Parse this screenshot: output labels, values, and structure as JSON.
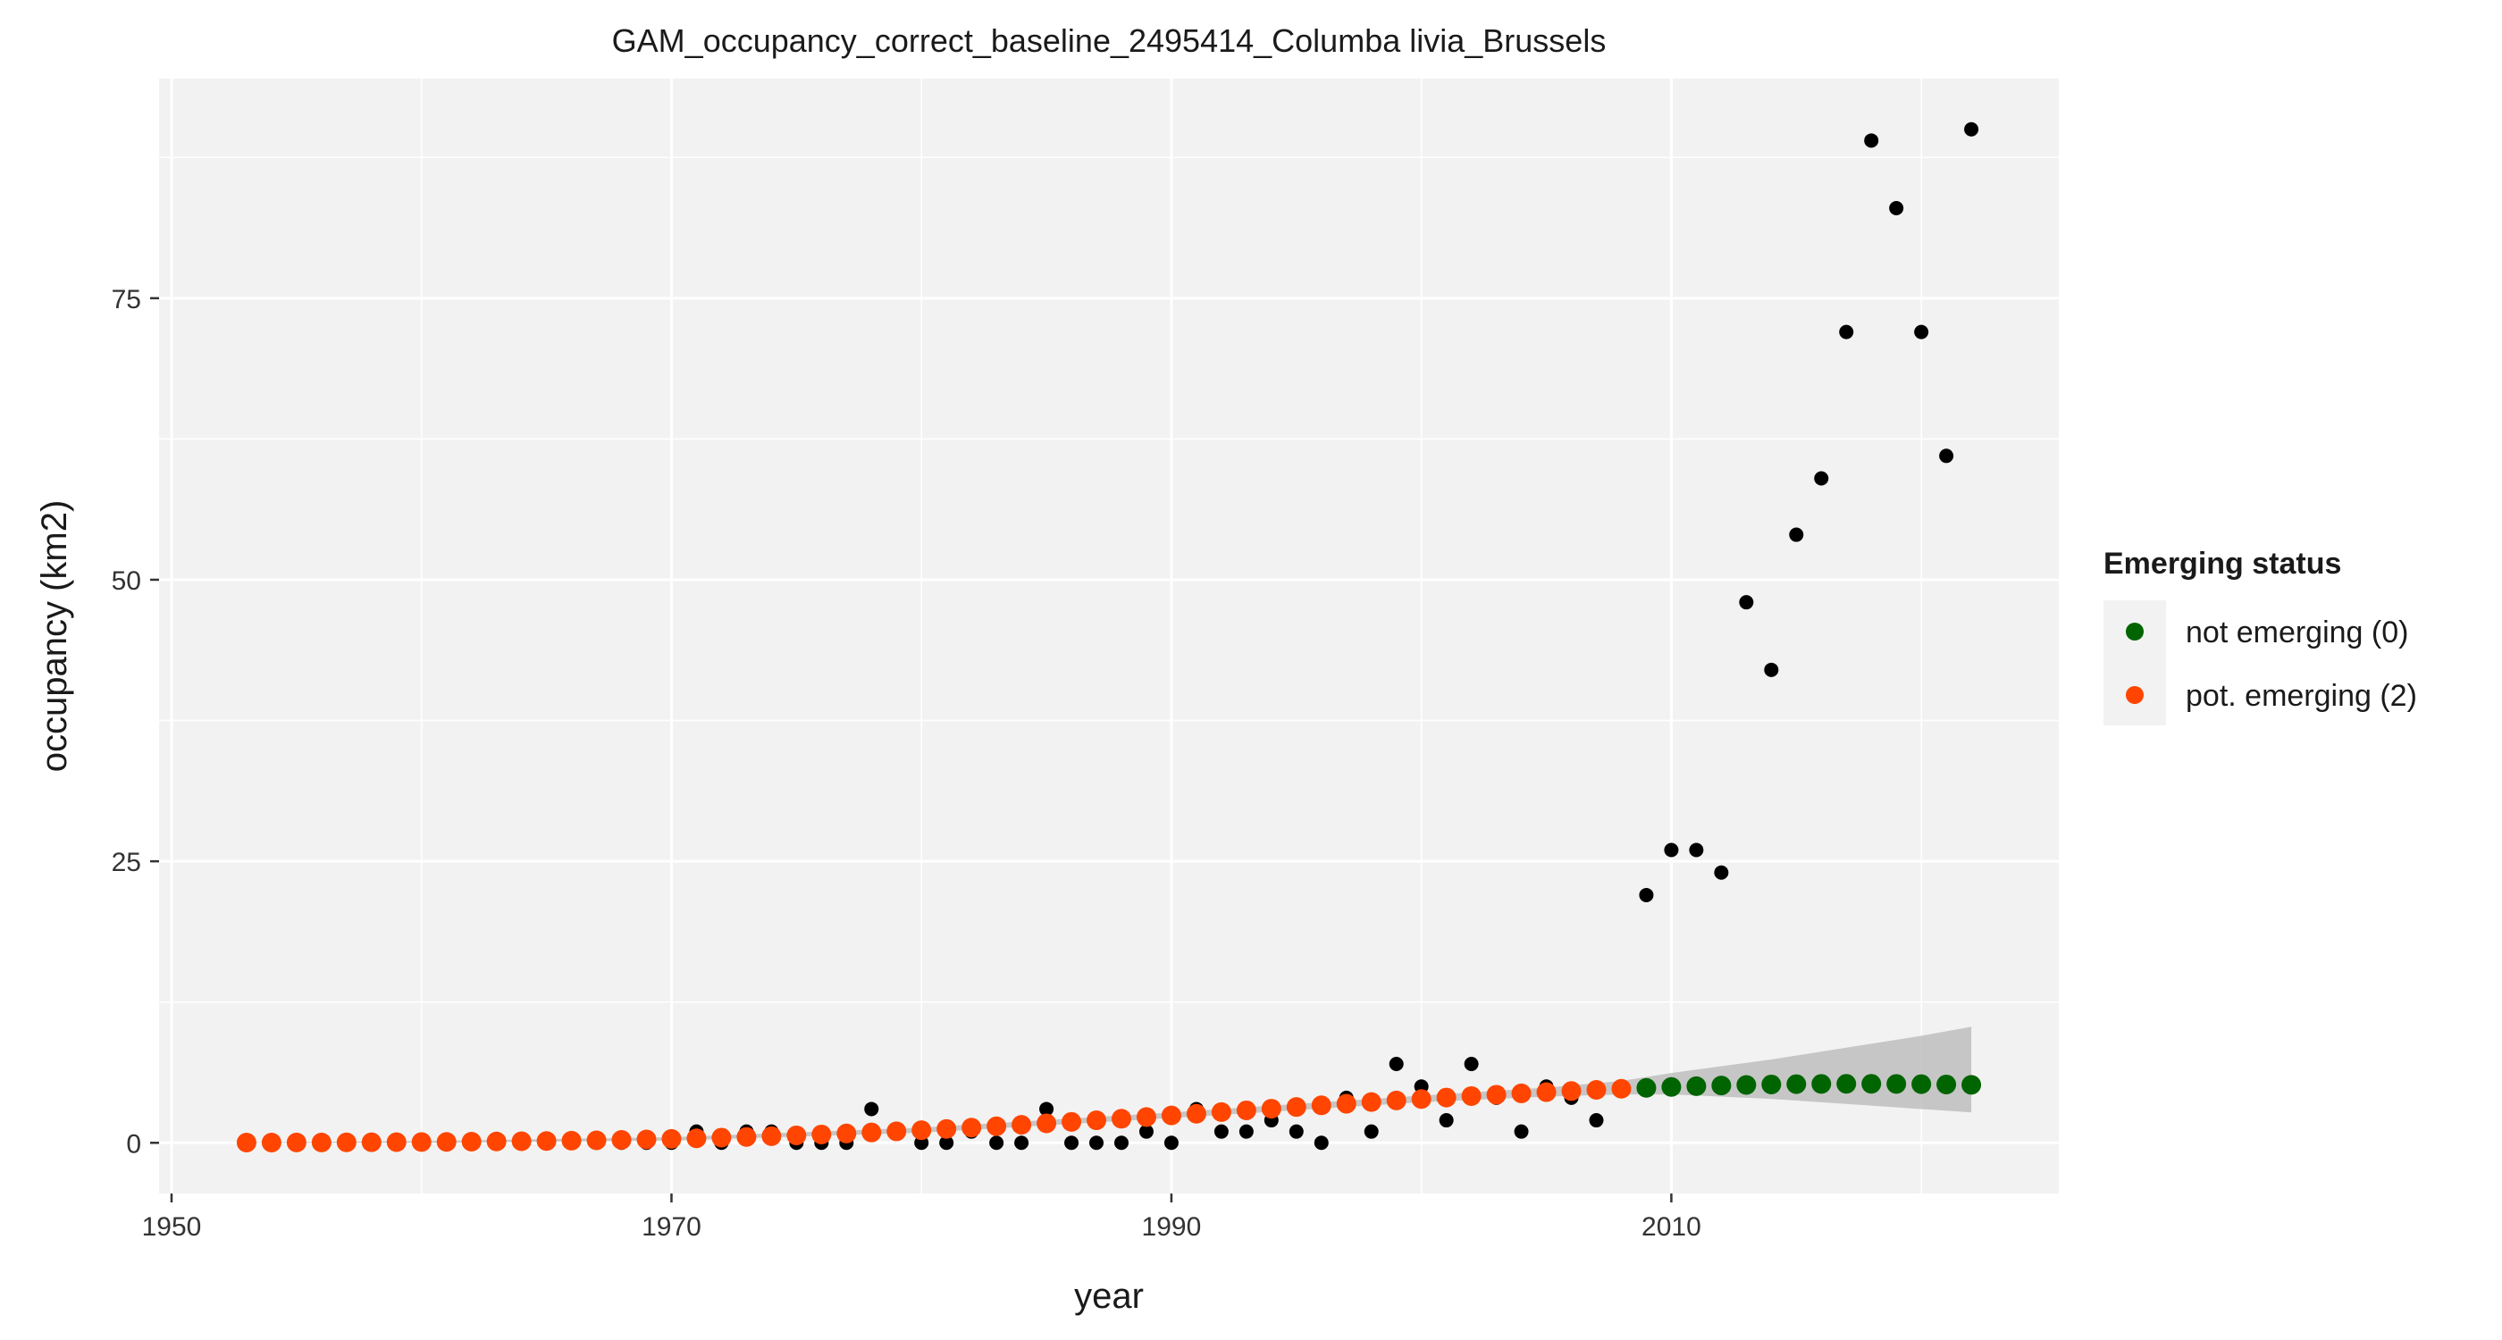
{
  "chart_data": {
    "type": "scatter",
    "title": "GAM_occupancy_correct_baseline_2495414_Columba livia_Brussels",
    "xlabel": "year",
    "ylabel": "occupancy (km2)",
    "xlim": [
      1949.5,
      2025.5
    ],
    "ylim": [
      -4.5,
      94.5
    ],
    "x_ticks": [
      1950,
      1970,
      1990,
      2010
    ],
    "y_ticks": [
      0,
      25,
      50,
      75
    ],
    "x_minor": [
      1960,
      1980,
      2000,
      2020
    ],
    "y_minor": [
      12.5,
      37.5,
      62.5,
      87.5
    ],
    "grid": true,
    "legend": {
      "title": "Emerging status",
      "position": "right",
      "entries": [
        {
          "label": "not emerging (0)",
          "color": "#006400"
        },
        {
          "label": "pot. emerging (2)",
          "color": "#FF4500"
        }
      ]
    },
    "observed": {
      "color": "#000000",
      "points": [
        [
          1968,
          0
        ],
        [
          1969,
          0
        ],
        [
          1970,
          0
        ],
        [
          1971,
          1
        ],
        [
          1972,
          0
        ],
        [
          1973,
          1
        ],
        [
          1974,
          1
        ],
        [
          1975,
          0
        ],
        [
          1976,
          0
        ],
        [
          1977,
          0
        ],
        [
          1978,
          3
        ],
        [
          1979,
          1
        ],
        [
          1980,
          0
        ],
        [
          1981,
          0
        ],
        [
          1982,
          1
        ],
        [
          1983,
          0
        ],
        [
          1984,
          0
        ],
        [
          1985,
          3
        ],
        [
          1986,
          0
        ],
        [
          1987,
          0
        ],
        [
          1988,
          0
        ],
        [
          1989,
          1
        ],
        [
          1990,
          0
        ],
        [
          1991,
          3
        ],
        [
          1992,
          1
        ],
        [
          1993,
          1
        ],
        [
          1994,
          2
        ],
        [
          1995,
          1
        ],
        [
          1996,
          0
        ],
        [
          1997,
          4
        ],
        [
          1998,
          1
        ],
        [
          1999,
          7
        ],
        [
          2000,
          5
        ],
        [
          2001,
          2
        ],
        [
          2002,
          7
        ],
        [
          2003,
          4
        ],
        [
          2004,
          1
        ],
        [
          2005,
          5
        ],
        [
          2006,
          4
        ],
        [
          2007,
          2
        ],
        [
          2008,
          5
        ],
        [
          2009,
          22
        ],
        [
          2010,
          26
        ],
        [
          2011,
          26
        ],
        [
          2012,
          24
        ],
        [
          2013,
          48
        ],
        [
          2014,
          42
        ],
        [
          2015,
          54
        ],
        [
          2016,
          59
        ],
        [
          2017,
          72
        ],
        [
          2018,
          89
        ],
        [
          2019,
          83
        ],
        [
          2020,
          72
        ],
        [
          2021,
          61
        ],
        [
          2022,
          90
        ]
      ]
    },
    "fit": {
      "x": [
        1953,
        1954,
        1955,
        1956,
        1957,
        1958,
        1959,
        1960,
        1961,
        1962,
        1963,
        1964,
        1965,
        1966,
        1967,
        1968,
        1969,
        1970,
        1971,
        1972,
        1973,
        1974,
        1975,
        1976,
        1977,
        1978,
        1979,
        1980,
        1981,
        1982,
        1983,
        1984,
        1985,
        1986,
        1987,
        1988,
        1989,
        1990,
        1991,
        1992,
        1993,
        1994,
        1995,
        1996,
        1997,
        1998,
        1999,
        2000,
        2001,
        2002,
        2003,
        2004,
        2005,
        2006,
        2007,
        2008,
        2009,
        2010,
        2011,
        2012,
        2013,
        2014,
        2015,
        2016,
        2017,
        2018,
        2019,
        2020,
        2021,
        2022
      ],
      "y": [
        0.02,
        0.02,
        0.03,
        0.03,
        0.04,
        0.05,
        0.06,
        0.07,
        0.08,
        0.1,
        0.12,
        0.14,
        0.16,
        0.19,
        0.22,
        0.26,
        0.3,
        0.35,
        0.4,
        0.46,
        0.52,
        0.59,
        0.66,
        0.74,
        0.83,
        0.92,
        1.02,
        1.12,
        1.23,
        1.35,
        1.47,
        1.6,
        1.73,
        1.86,
        2.0,
        2.14,
        2.29,
        2.43,
        2.58,
        2.73,
        2.88,
        3.03,
        3.18,
        3.33,
        3.47,
        3.62,
        3.76,
        3.89,
        4.02,
        4.15,
        4.27,
        4.39,
        4.5,
        4.6,
        4.7,
        4.8,
        4.88,
        4.96,
        5.03,
        5.09,
        5.14,
        5.18,
        5.21,
        5.23,
        5.24,
        5.24,
        5.23,
        5.21,
        5.18,
        5.15
      ],
      "status": [
        "pot. emerging (2)",
        "pot. emerging (2)",
        "pot. emerging (2)",
        "pot. emerging (2)",
        "pot. emerging (2)",
        "pot. emerging (2)",
        "pot. emerging (2)",
        "pot. emerging (2)",
        "pot. emerging (2)",
        "pot. emerging (2)",
        "pot. emerging (2)",
        "pot. emerging (2)",
        "pot. emerging (2)",
        "pot. emerging (2)",
        "pot. emerging (2)",
        "pot. emerging (2)",
        "pot. emerging (2)",
        "pot. emerging (2)",
        "pot. emerging (2)",
        "pot. emerging (2)",
        "pot. emerging (2)",
        "pot. emerging (2)",
        "pot. emerging (2)",
        "pot. emerging (2)",
        "pot. emerging (2)",
        "pot. emerging (2)",
        "pot. emerging (2)",
        "pot. emerging (2)",
        "pot. emerging (2)",
        "pot. emerging (2)",
        "pot. emerging (2)",
        "pot. emerging (2)",
        "pot. emerging (2)",
        "pot. emerging (2)",
        "pot. emerging (2)",
        "pot. emerging (2)",
        "pot. emerging (2)",
        "pot. emerging (2)",
        "pot. emerging (2)",
        "pot. emerging (2)",
        "pot. emerging (2)",
        "pot. emerging (2)",
        "pot. emerging (2)",
        "pot. emerging (2)",
        "pot. emerging (2)",
        "pot. emerging (2)",
        "pot. emerging (2)",
        "pot. emerging (2)",
        "pot. emerging (2)",
        "pot. emerging (2)",
        "pot. emerging (2)",
        "pot. emerging (2)",
        "pot. emerging (2)",
        "pot. emerging (2)",
        "pot. emerging (2)",
        "pot. emerging (2)",
        "not emerging (0)",
        "not emerging (0)",
        "not emerging (0)",
        "not emerging (0)",
        "not emerging (0)",
        "not emerging (0)",
        "not emerging (0)",
        "not emerging (0)",
        "not emerging (0)",
        "not emerging (0)",
        "not emerging (0)",
        "not emerging (0)",
        "not emerging (0)",
        "not emerging (0)"
      ]
    },
    "confidence_band": {
      "color": "#BEBEBE",
      "x": [
        1953,
        1960,
        1970,
        1980,
        1990,
        2000,
        2005,
        2008,
        2010,
        2012,
        2014,
        2016,
        2018,
        2020,
        2022
      ],
      "lower": [
        0,
        0,
        0.2,
        0.9,
        2.2,
        3.6,
        4.1,
        4.3,
        4.3,
        4.1,
        3.9,
        3.6,
        3.3,
        3.0,
        2.7
      ],
      "upper": [
        0.05,
        0.15,
        0.5,
        1.35,
        2.7,
        4.2,
        4.9,
        5.5,
        6.2,
        6.8,
        7.4,
        8.1,
        8.8,
        9.5,
        10.3
      ]
    }
  }
}
